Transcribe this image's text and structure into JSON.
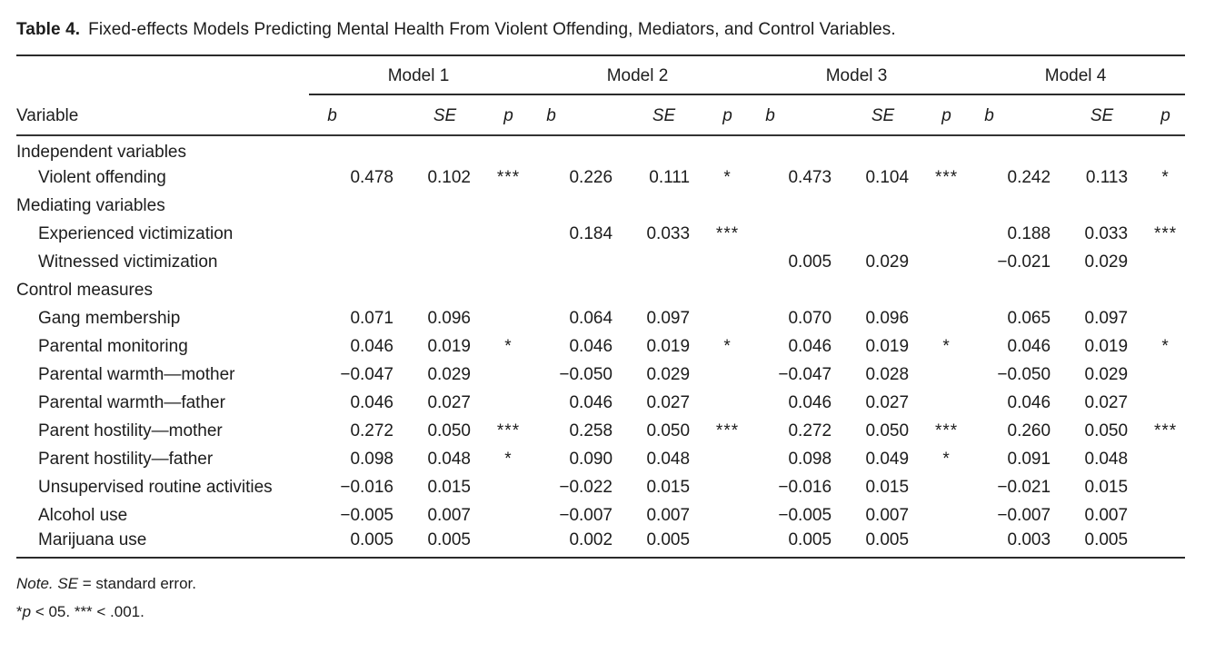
{
  "page": {
    "title": {
      "label": "Table 4.",
      "text": "Fixed-effects Models Predicting Mental Health From Violent Offending, Mediators, and Control Variables."
    }
  },
  "table": {
    "corner_header": "Variable",
    "models": [
      "Model 1",
      "Model 2",
      "Model 3",
      "Model 4"
    ],
    "stat_headers": {
      "b": "b",
      "se": "SE",
      "p": "p"
    },
    "rows": [
      {
        "type": "section",
        "label": "Independent variables",
        "cells": [
          "",
          "",
          "",
          "",
          "",
          "",
          "",
          "",
          "",
          "",
          "",
          ""
        ]
      },
      {
        "type": "item",
        "label": "Violent offending",
        "cells": [
          "0.478",
          "0.102",
          "***",
          "0.226",
          "0.111",
          "*",
          "0.473",
          "0.104",
          "***",
          "0.242",
          "0.113",
          "*"
        ]
      },
      {
        "type": "section",
        "label": "Mediating variables",
        "cells": [
          "",
          "",
          "",
          "",
          "",
          "",
          "",
          "",
          "",
          "",
          "",
          ""
        ]
      },
      {
        "type": "item",
        "label": "Experienced victimization",
        "cells": [
          "",
          "",
          "",
          "0.184",
          "0.033",
          "***",
          "",
          "",
          "",
          "0.188",
          "0.033",
          "***"
        ]
      },
      {
        "type": "item",
        "label": "Witnessed victimization",
        "cells": [
          "",
          "",
          "",
          "",
          "",
          "",
          "0.005",
          "0.029",
          "",
          "−0.021",
          "0.029",
          ""
        ]
      },
      {
        "type": "section",
        "label": "Control measures",
        "cells": [
          "",
          "",
          "",
          "",
          "",
          "",
          "",
          "",
          "",
          "",
          "",
          ""
        ]
      },
      {
        "type": "item",
        "label": "Gang membership",
        "cells": [
          "0.071",
          "0.096",
          "",
          "0.064",
          "0.097",
          "",
          "0.070",
          "0.096",
          "",
          "0.065",
          "0.097",
          ""
        ]
      },
      {
        "type": "item",
        "label": "Parental monitoring",
        "cells": [
          "0.046",
          "0.019",
          "*",
          "0.046",
          "0.019",
          "*",
          "0.046",
          "0.019",
          "*",
          "0.046",
          "0.019",
          "*"
        ]
      },
      {
        "type": "item",
        "label": "Parental warmth—mother",
        "cells": [
          "−0.047",
          "0.029",
          "",
          "−0.050",
          "0.029",
          "",
          "−0.047",
          "0.028",
          "",
          "−0.050",
          "0.029",
          ""
        ]
      },
      {
        "type": "item",
        "label": "Parental warmth—father",
        "cells": [
          "0.046",
          "0.027",
          "",
          "0.046",
          "0.027",
          "",
          "0.046",
          "0.027",
          "",
          "0.046",
          "0.027",
          ""
        ]
      },
      {
        "type": "item",
        "label": "Parent hostility—mother",
        "cells": [
          "0.272",
          "0.050",
          "***",
          "0.258",
          "0.050",
          "***",
          "0.272",
          "0.050",
          "***",
          "0.260",
          "0.050",
          "***"
        ]
      },
      {
        "type": "item",
        "label": "Parent hostility—father",
        "cells": [
          "0.098",
          "0.048",
          "*",
          "0.090",
          "0.048",
          "",
          "0.098",
          "0.049",
          "*",
          "0.091",
          "0.048",
          ""
        ]
      },
      {
        "type": "item",
        "label": "Unsupervised routine activities",
        "cells": [
          "−0.016",
          "0.015",
          "",
          "−0.022",
          "0.015",
          "",
          "−0.016",
          "0.015",
          "",
          "−0.021",
          "0.015",
          ""
        ]
      },
      {
        "type": "item",
        "label": "Alcohol use",
        "cells": [
          "−0.005",
          "0.007",
          "",
          "−0.007",
          "0.007",
          "",
          "−0.005",
          "0.007",
          "",
          "−0.007",
          "0.007",
          ""
        ]
      },
      {
        "type": "item",
        "label": "Marijuana use",
        "cells": [
          "0.005",
          "0.005",
          "",
          "0.002",
          "0.005",
          "",
          "0.005",
          "0.005",
          "",
          "0.003",
          "0.005",
          ""
        ]
      }
    ]
  },
  "notes": {
    "line1": {
      "note_label": "Note.",
      "space": " ",
      "se_term": "SE",
      "rest": " = standard error."
    },
    "line2": {
      "star": "*",
      "p_term": "p",
      "rest": " < 05. *** < .001."
    }
  }
}
